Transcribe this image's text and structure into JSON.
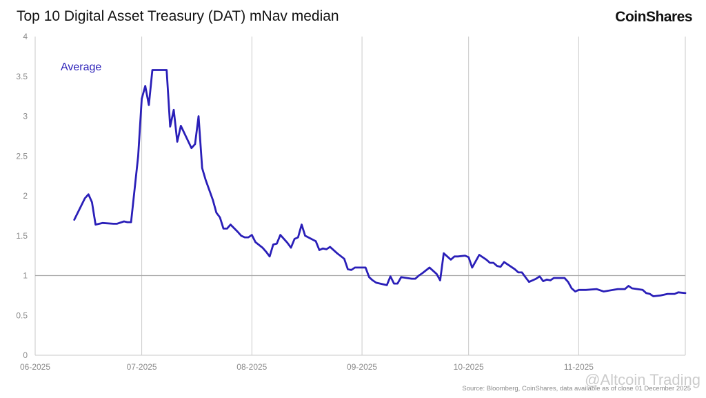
{
  "header": {
    "title": "Top 10 Digital Asset Treasury (DAT) mNav median",
    "logo": "CoinShares"
  },
  "footer": {
    "source": "Source: Bloomberg, CoinShares, data available as of close 01 December 2025",
    "watermark": "@Altcoin Trading"
  },
  "colors": {
    "line": "#2a1fb8",
    "grid": "#c9c9c9",
    "reference": "#a9a9a9",
    "axis_text": "#8a8a8a"
  },
  "chart_data": {
    "type": "line",
    "title": "Top 10 Digital Asset Treasury (DAT) mNav median",
    "xlabel": "",
    "ylabel": "",
    "x_ticks": [
      "06-2025",
      "07-2025",
      "08-2025",
      "09-2025",
      "10-2025",
      "11-2025"
    ],
    "x_range": [
      "2025-06-01",
      "2025-12-01"
    ],
    "y_ticks": [
      "0",
      "0.5",
      "1",
      "1.5",
      "2",
      "2.5",
      "3",
      "3.5",
      "4"
    ],
    "ylim": [
      0,
      4
    ],
    "grid": "vertical",
    "reference_line": 1,
    "series": [
      {
        "name": "Average",
        "points": [
          [
            "2025-06-12",
            1.7
          ],
          [
            "2025-06-15",
            1.97
          ],
          [
            "2025-06-16",
            2.02
          ],
          [
            "2025-06-17",
            1.92
          ],
          [
            "2025-06-18",
            1.64
          ],
          [
            "2025-06-20",
            1.66
          ],
          [
            "2025-06-23",
            1.65
          ],
          [
            "2025-06-24",
            1.65
          ],
          [
            "2025-06-26",
            1.68
          ],
          [
            "2025-06-27",
            1.67
          ],
          [
            "2025-06-28",
            1.67
          ],
          [
            "2025-06-30",
            2.5
          ],
          [
            "2025-07-01",
            3.22
          ],
          [
            "2025-07-02",
            3.38
          ],
          [
            "2025-07-03",
            3.14
          ],
          [
            "2025-07-04",
            3.58
          ],
          [
            "2025-07-07",
            3.58
          ],
          [
            "2025-07-08",
            3.58
          ],
          [
            "2025-07-09",
            2.87
          ],
          [
            "2025-07-10",
            3.08
          ],
          [
            "2025-07-11",
            2.68
          ],
          [
            "2025-07-12",
            2.88
          ],
          [
            "2025-07-15",
            2.6
          ],
          [
            "2025-07-16",
            2.65
          ],
          [
            "2025-07-17",
            3.0
          ],
          [
            "2025-07-18",
            2.35
          ],
          [
            "2025-07-19",
            2.2
          ],
          [
            "2025-07-21",
            1.95
          ],
          [
            "2025-07-22",
            1.79
          ],
          [
            "2025-07-23",
            1.73
          ],
          [
            "2025-07-24",
            1.59
          ],
          [
            "2025-07-25",
            1.59
          ],
          [
            "2025-07-26",
            1.64
          ],
          [
            "2025-07-28",
            1.55
          ],
          [
            "2025-07-29",
            1.5
          ],
          [
            "2025-07-30",
            1.48
          ],
          [
            "2025-07-31",
            1.48
          ],
          [
            "2025-08-01",
            1.51
          ],
          [
            "2025-08-02",
            1.42
          ],
          [
            "2025-08-04",
            1.35
          ],
          [
            "2025-08-05",
            1.3
          ],
          [
            "2025-08-06",
            1.24
          ],
          [
            "2025-08-07",
            1.39
          ],
          [
            "2025-08-08",
            1.4
          ],
          [
            "2025-08-09",
            1.51
          ],
          [
            "2025-08-11",
            1.41
          ],
          [
            "2025-08-12",
            1.35
          ],
          [
            "2025-08-13",
            1.46
          ],
          [
            "2025-08-14",
            1.48
          ],
          [
            "2025-08-15",
            1.64
          ],
          [
            "2025-08-16",
            1.5
          ],
          [
            "2025-08-19",
            1.43
          ],
          [
            "2025-08-20",
            1.32
          ],
          [
            "2025-08-21",
            1.34
          ],
          [
            "2025-08-22",
            1.33
          ],
          [
            "2025-08-23",
            1.36
          ],
          [
            "2025-08-25",
            1.28
          ],
          [
            "2025-08-27",
            1.21
          ],
          [
            "2025-08-28",
            1.08
          ],
          [
            "2025-08-29",
            1.07
          ],
          [
            "2025-08-30",
            1.1
          ],
          [
            "2025-09-01",
            1.1
          ],
          [
            "2025-09-02",
            1.1
          ],
          [
            "2025-09-03",
            0.98
          ],
          [
            "2025-09-04",
            0.94
          ],
          [
            "2025-09-05",
            0.91
          ],
          [
            "2025-09-08",
            0.88
          ],
          [
            "2025-09-09",
            0.99
          ],
          [
            "2025-09-10",
            0.9
          ],
          [
            "2025-09-11",
            0.9
          ],
          [
            "2025-09-12",
            0.98
          ],
          [
            "2025-09-15",
            0.96
          ],
          [
            "2025-09-16",
            0.96
          ],
          [
            "2025-09-17",
            1.0
          ],
          [
            "2025-09-18",
            1.03
          ],
          [
            "2025-09-20",
            1.1
          ],
          [
            "2025-09-22",
            1.02
          ],
          [
            "2025-09-23",
            0.94
          ],
          [
            "2025-09-24",
            1.28
          ],
          [
            "2025-09-26",
            1.2
          ],
          [
            "2025-09-27",
            1.24
          ],
          [
            "2025-09-28",
            1.24
          ],
          [
            "2025-09-30",
            1.25
          ],
          [
            "2025-10-01",
            1.23
          ],
          [
            "2025-10-02",
            1.1
          ],
          [
            "2025-10-03",
            1.18
          ],
          [
            "2025-10-04",
            1.26
          ],
          [
            "2025-10-06",
            1.2
          ],
          [
            "2025-10-07",
            1.16
          ],
          [
            "2025-10-08",
            1.16
          ],
          [
            "2025-10-09",
            1.12
          ],
          [
            "2025-10-10",
            1.11
          ],
          [
            "2025-10-11",
            1.17
          ],
          [
            "2025-10-13",
            1.11
          ],
          [
            "2025-10-14",
            1.08
          ],
          [
            "2025-10-15",
            1.04
          ],
          [
            "2025-10-16",
            1.04
          ],
          [
            "2025-10-17",
            0.98
          ],
          [
            "2025-10-18",
            0.92
          ],
          [
            "2025-10-20",
            0.96
          ],
          [
            "2025-10-21",
            0.99
          ],
          [
            "2025-10-22",
            0.93
          ],
          [
            "2025-10-23",
            0.95
          ],
          [
            "2025-10-24",
            0.94
          ],
          [
            "2025-10-25",
            0.97
          ],
          [
            "2025-10-28",
            0.97
          ],
          [
            "2025-10-29",
            0.92
          ],
          [
            "2025-10-30",
            0.84
          ],
          [
            "2025-10-31",
            0.8
          ],
          [
            "2025-11-01",
            0.82
          ],
          [
            "2025-11-03",
            0.82
          ],
          [
            "2025-11-06",
            0.83
          ],
          [
            "2025-11-08",
            0.8
          ],
          [
            "2025-11-12",
            0.83
          ],
          [
            "2025-11-14",
            0.83
          ],
          [
            "2025-11-15",
            0.87
          ],
          [
            "2025-11-16",
            0.84
          ],
          [
            "2025-11-19",
            0.82
          ],
          [
            "2025-11-20",
            0.78
          ],
          [
            "2025-11-21",
            0.77
          ],
          [
            "2025-11-22",
            0.74
          ],
          [
            "2025-11-24",
            0.75
          ],
          [
            "2025-11-26",
            0.77
          ],
          [
            "2025-11-28",
            0.77
          ],
          [
            "2025-11-29",
            0.79
          ],
          [
            "2025-12-01",
            0.78
          ]
        ]
      }
    ]
  }
}
